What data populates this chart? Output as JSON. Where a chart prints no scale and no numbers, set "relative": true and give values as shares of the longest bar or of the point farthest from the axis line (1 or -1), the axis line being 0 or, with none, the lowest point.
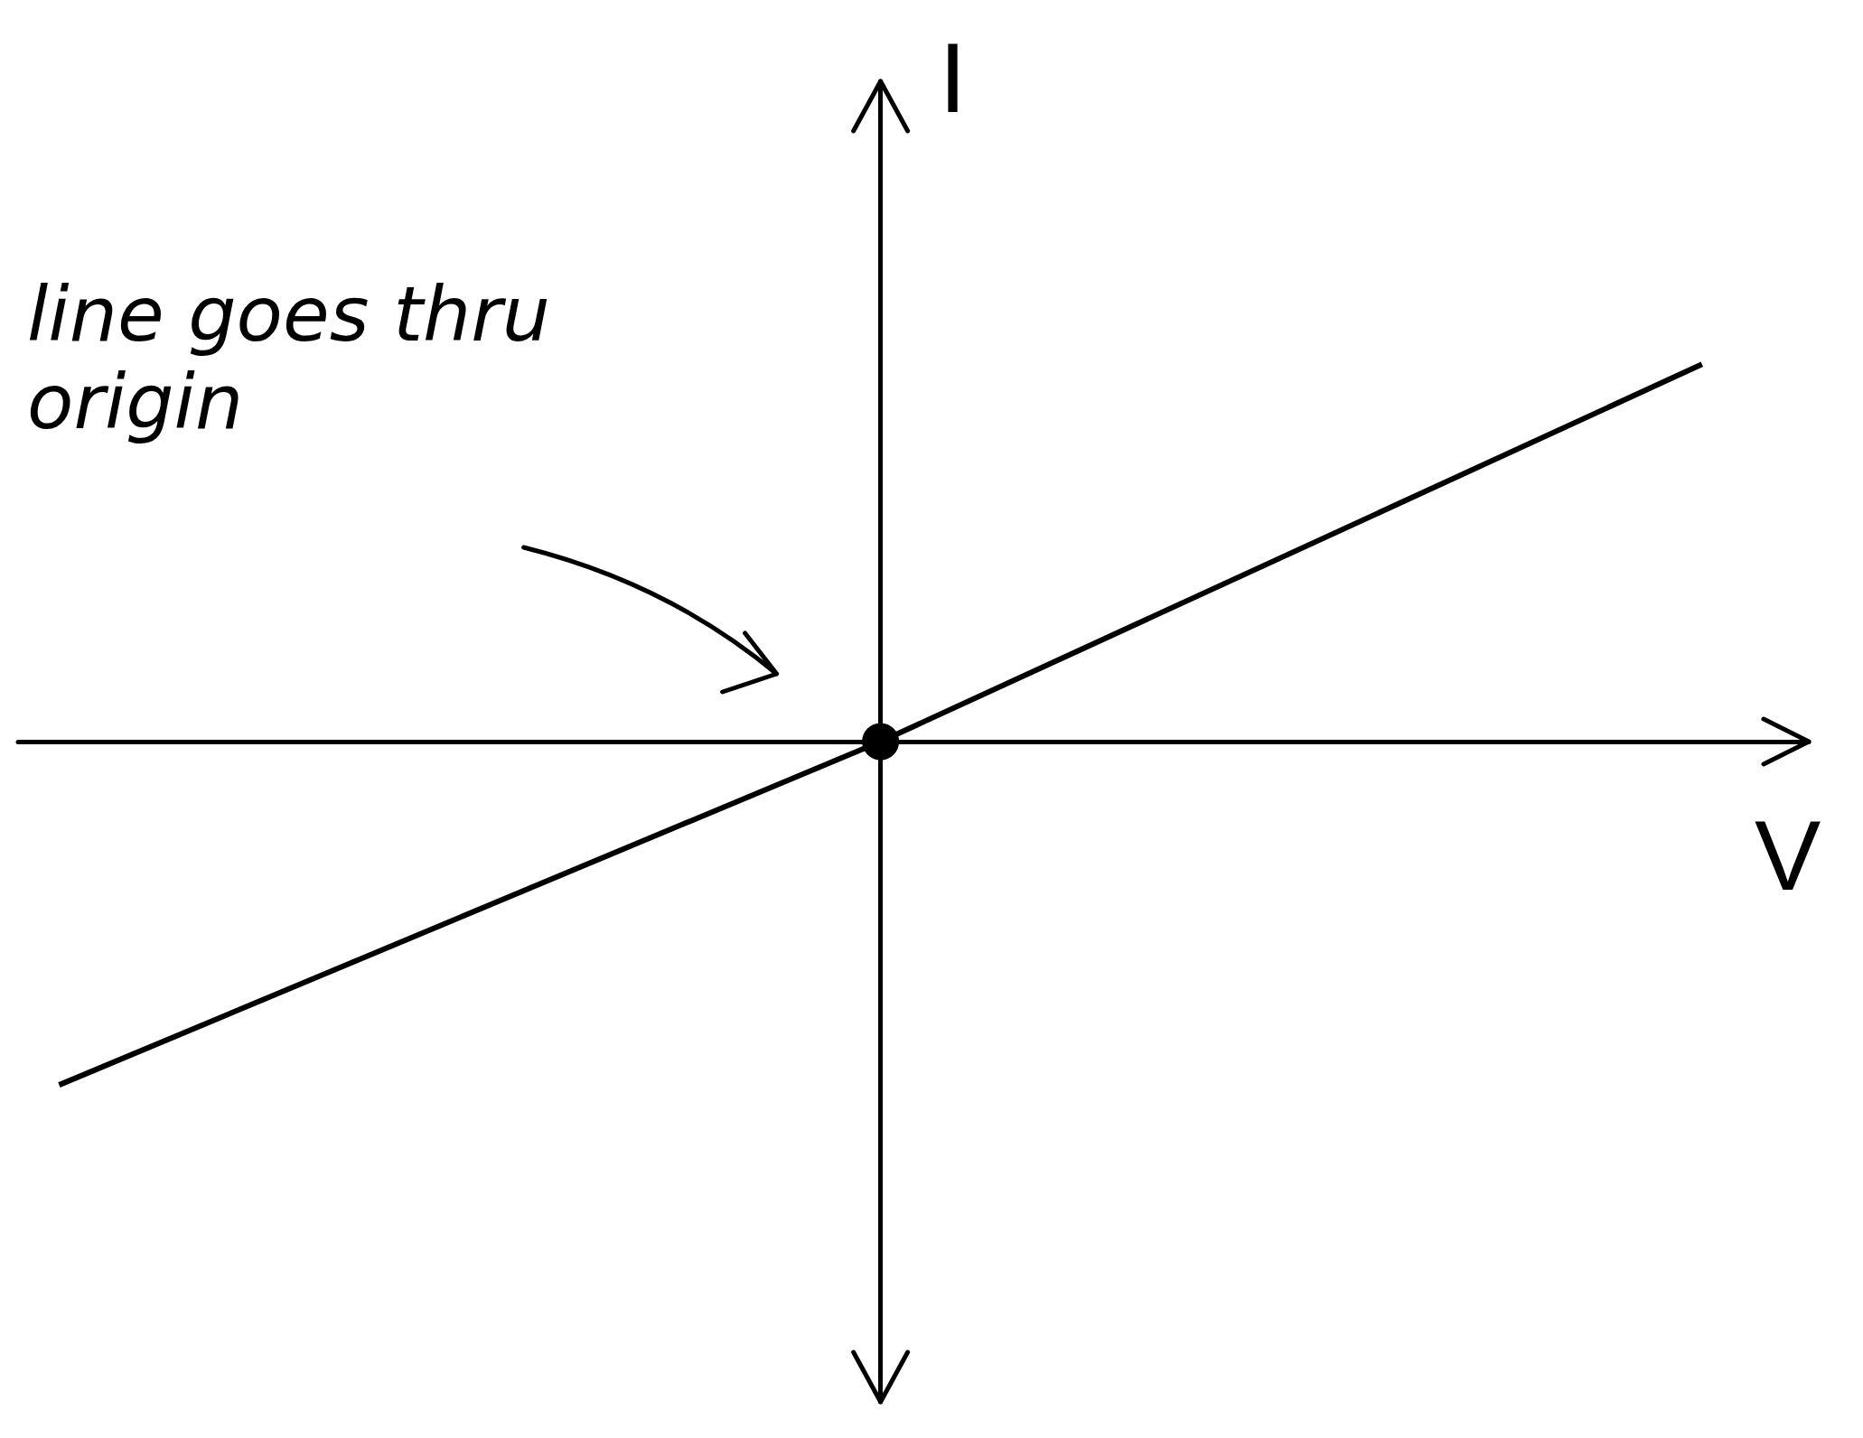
{
  "chart_data": {
    "type": "line",
    "relative": true,
    "categories": [
      null,
      null,
      null
    ],
    "xlabel": "V",
    "ylabel": "I",
    "annotations": [
      "line goes thru origin"
    ],
    "grid": false,
    "series": [
      {
        "color": "#000000",
        "values": [
          -0.91,
          0,
          1
        ],
        "marker": "none"
      }
    ]
  }
}
